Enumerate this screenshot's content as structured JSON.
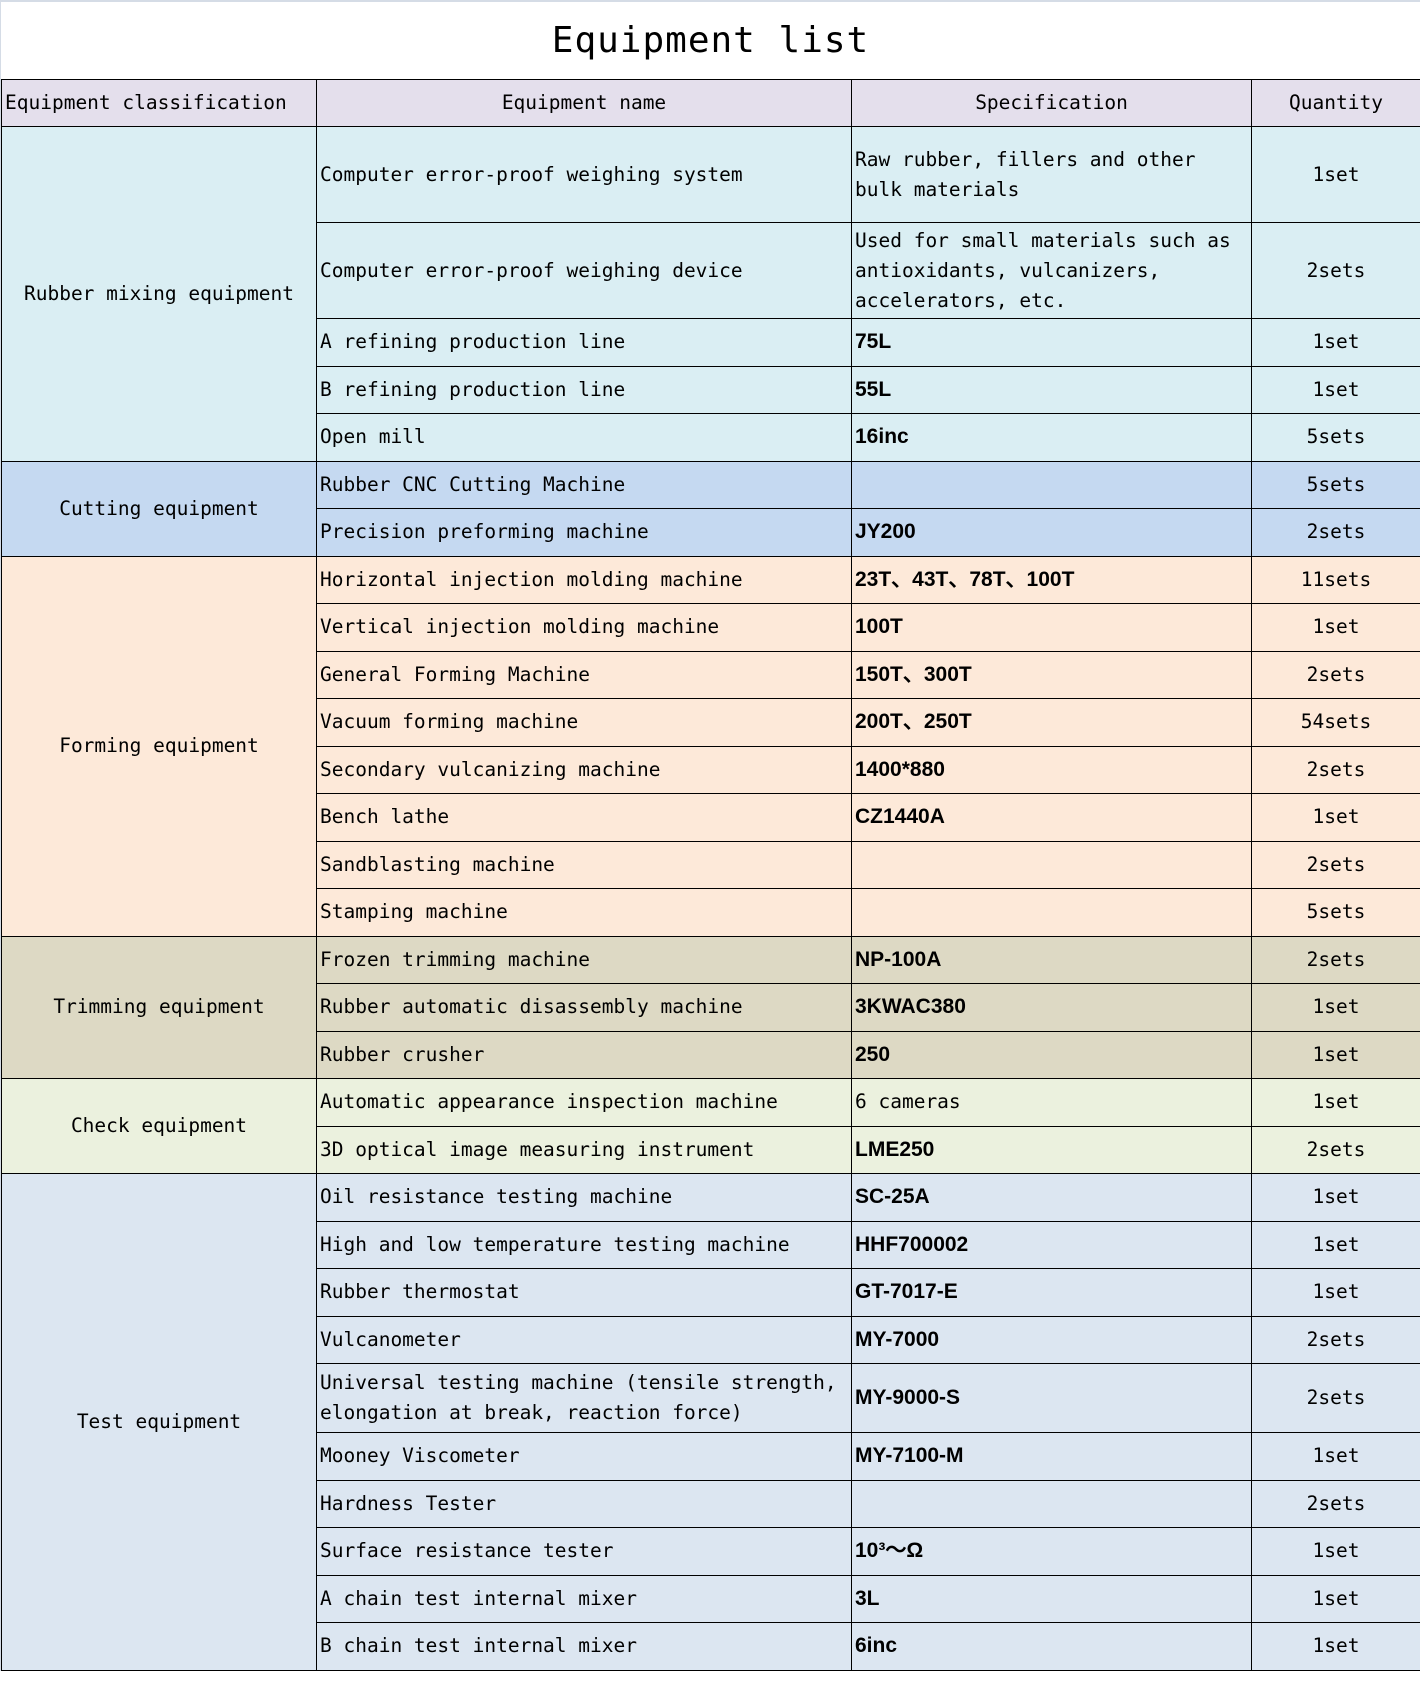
{
  "title": "Equipment list",
  "headers": {
    "classification": "Equipment classification",
    "name": "Equipment name",
    "specification": "Specification",
    "quantity": "Quantity"
  },
  "groups": [
    {
      "classification": "Rubber mixing equipment",
      "color": "#daeef3",
      "rows": [
        {
          "name": "Computer error-proof weighing system",
          "spec": "Raw rubber, fillers and other bulk materials",
          "qty": "1set"
        },
        {
          "name": "Computer error-proof weighing device",
          "spec": "Used for small materials such as antioxidants, vulcanizers, accelerators, etc.",
          "qty": "2sets"
        },
        {
          "name": "A refining production line",
          "spec": "75L",
          "qty": "1set"
        },
        {
          "name": "B refining production line",
          "spec": "55L",
          "qty": "1set"
        },
        {
          "name": "Open mill",
          "spec": "16inc",
          "qty": "5sets"
        }
      ]
    },
    {
      "classification": "Cutting equipment",
      "color": "#c5d9f1",
      "rows": [
        {
          "name": "Rubber CNC Cutting Machine",
          "spec": "",
          "qty": "5sets"
        },
        {
          "name": "Precision preforming machine",
          "spec": "JY200",
          "qty": "2sets"
        }
      ]
    },
    {
      "classification": "Forming equipment",
      "color": "#fde9d9",
      "rows": [
        {
          "name": "Horizontal injection molding machine",
          "spec": "23T、43T、78T、100T",
          "qty": "11sets"
        },
        {
          "name": "Vertical injection molding machine",
          "spec": "100T",
          "qty": "1set"
        },
        {
          "name": "General Forming Machine",
          "spec": "150T、300T",
          "qty": "2sets"
        },
        {
          "name": "Vacuum forming machine",
          "spec": "200T、250T",
          "qty": "54sets"
        },
        {
          "name": "Secondary vulcanizing machine",
          "spec": "1400*880",
          "qty": "2sets"
        },
        {
          "name": "Bench lathe",
          "spec": "CZ1440A",
          "qty": "1set"
        },
        {
          "name": "Sandblasting machine",
          "spec": "",
          "qty": "2sets"
        },
        {
          "name": "Stamping machine",
          "spec": "",
          "qty": "5sets"
        }
      ]
    },
    {
      "classification": "Trimming equipment",
      "color": "#ddd9c4",
      "rows": [
        {
          "name": "Frozen trimming machine",
          "spec": "NP-100A",
          "qty": "2sets"
        },
        {
          "name": "Rubber automatic disassembly machine",
          "spec": "3KWAC380",
          "qty": "1set"
        },
        {
          "name": "Rubber crusher",
          "spec": "250",
          "qty": "1set"
        }
      ]
    },
    {
      "classification": "Check equipment",
      "color": "#ebf1de",
      "rows": [
        {
          "name": "Automatic appearance inspection machine",
          "spec": "6 cameras",
          "qty": "1set"
        },
        {
          "name": "3D optical image measuring instrument",
          "spec": "LME250",
          "qty": "2sets"
        }
      ]
    },
    {
      "classification": "Test equipment",
      "color": "#dce6f1",
      "rows": [
        {
          "name": "Oil resistance testing machine",
          "spec": "SC-25A",
          "qty": "1set"
        },
        {
          "name": "High and low temperature testing machine",
          "spec": "HHF700002",
          "qty": "1set"
        },
        {
          "name": "Rubber thermostat",
          "spec": "GT-7017-E",
          "qty": "1set"
        },
        {
          "name": "Vulcanometer",
          "spec": "MY-7000",
          "qty": "2sets"
        },
        {
          "name": "Universal testing machine (tensile strength, elongation at break, reaction force)",
          "spec": "MY-9000-S",
          "qty": "2sets"
        },
        {
          "name": "Mooney Viscometer",
          "spec": "MY-7100-M",
          "qty": "1set"
        },
        {
          "name": "Hardness Tester",
          "spec": "",
          "qty": "2sets"
        },
        {
          "name": "Surface resistance tester",
          "spec": "10³～Ω",
          "qty": "1set"
        },
        {
          "name": "A chain test internal mixer",
          "spec": "3L",
          "qty": "1set"
        },
        {
          "name": "B chain test internal mixer",
          "spec": "6inc",
          "qty": "1set"
        }
      ]
    }
  ]
}
